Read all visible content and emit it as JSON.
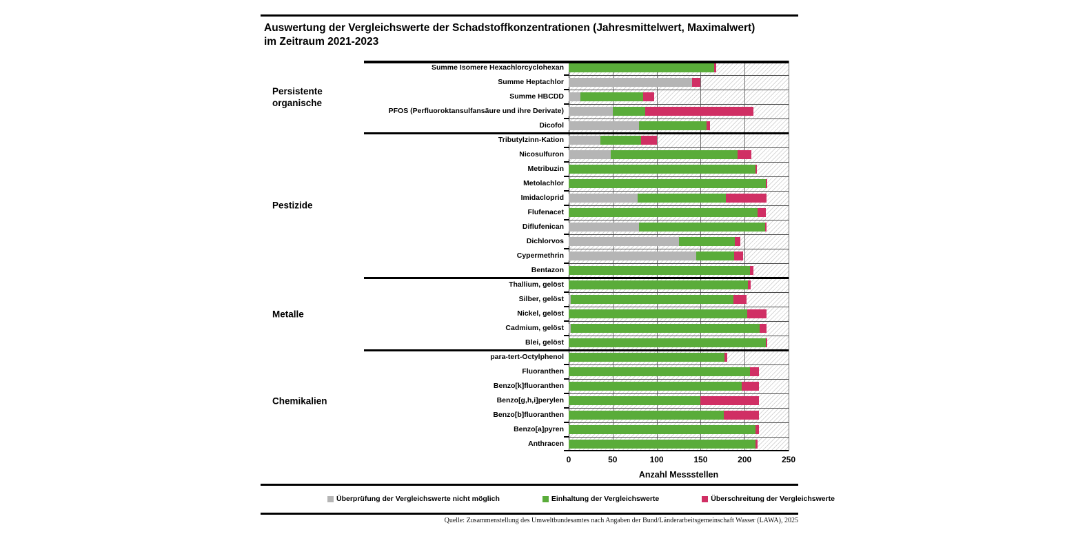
{
  "title": {
    "line1": "Auswertung der Vergleichswerte der Schadstoffkonzentrationen (Jahresmittelwert, Maximalwert)",
    "line2": "im Zeitraum 2021-2023"
  },
  "source": "Quelle: Zusammenstellung des Umweltbundesamtes nach Angaben der Bund/Länderarbeitsgemeinschaft Wasser (LAWA), 2025",
  "chart_data": {
    "type": "bar",
    "orientation": "horizontal",
    "stacked": true,
    "xlabel": "Anzahl Messstellen",
    "xlim": [
      0,
      250
    ],
    "xticks": [
      0,
      50,
      100,
      150,
      200,
      250
    ],
    "grid": true,
    "legend_position": "bottom",
    "legend": [
      {
        "label": "Überprüfung der Vergleichswerte nicht möglich",
        "color": "#b5b5b5"
      },
      {
        "label": "Einhaltung der Vergleichswerte",
        "color": "#5aac3a"
      },
      {
        "label": "Überschreitung der Vergleichswerte",
        "color": "#d02f64"
      }
    ],
    "series_order": [
      "Überprüfung der Vergleichswerte nicht möglich",
      "Einhaltung der Vergleichswerte",
      "Überschreitung der Vergleichswerte"
    ],
    "groups": [
      {
        "name": "Persistente organische",
        "rows": [
          {
            "label": "Summe Isomere Hexachlorcyclohexan",
            "values": [
              0,
              165,
              3
            ]
          },
          {
            "label": "Summe Heptachlor",
            "values": [
              140,
              0,
              10
            ]
          },
          {
            "label": "Summe HBCDD",
            "values": [
              13,
              72,
              12
            ]
          },
          {
            "label": "PFOS (Perfluoroktansulfansäure und ihre Derivate)",
            "values": [
              50,
              37,
              123
            ]
          },
          {
            "label": "Dicofol",
            "values": [
              80,
              77,
              4
            ]
          }
        ]
      },
      {
        "name": "Pestizide",
        "rows": [
          {
            "label": "Tributylzinn-Kation",
            "values": [
              36,
              46,
              18
            ]
          },
          {
            "label": "Nicosulfuron",
            "values": [
              48,
              144,
              16
            ]
          },
          {
            "label": "Metribuzin",
            "values": [
              0,
              212,
              2
            ]
          },
          {
            "label": "Metolachlor",
            "values": [
              0,
              224,
              2
            ]
          },
          {
            "label": "Imidacloprid",
            "values": [
              78,
              101,
              46
            ]
          },
          {
            "label": "Flufenacet",
            "values": [
              0,
              215,
              9
            ]
          },
          {
            "label": "Diflufenican",
            "values": [
              80,
              143,
              2
            ]
          },
          {
            "label": "Dichlorvos",
            "values": [
              125,
              64,
              6
            ]
          },
          {
            "label": "Cypermethrin",
            "values": [
              145,
              43,
              10
            ]
          },
          {
            "label": "Bentazon",
            "values": [
              0,
              206,
              4
            ]
          }
        ]
      },
      {
        "name": "Metalle",
        "rows": [
          {
            "label": "Thallium, gelöst",
            "values": [
              0,
              204,
              3
            ]
          },
          {
            "label": "Silber, gelöst",
            "values": [
              2,
              185,
              15
            ]
          },
          {
            "label": "Nickel, gelöst",
            "values": [
              0,
              203,
              22
            ]
          },
          {
            "label": "Cadmium, gelöst",
            "values": [
              2,
              215,
              8
            ]
          },
          {
            "label": "Blei, gelöst",
            "values": [
              0,
              224,
              2
            ]
          }
        ]
      },
      {
        "name": "Chemikalien",
        "rows": [
          {
            "label": "para-tert-Octylphenol",
            "values": [
              0,
              177,
              3
            ]
          },
          {
            "label": "Fluoranthen",
            "values": [
              0,
              206,
              10
            ]
          },
          {
            "label": "Benzo[k]fluoranthen",
            "values": [
              0,
              197,
              19
            ]
          },
          {
            "label": "Benzo[g,h,i]perylen",
            "values": [
              0,
              150,
              66
            ]
          },
          {
            "label": "Benzo[b]fluoranthen",
            "values": [
              0,
              176,
              40
            ]
          },
          {
            "label": "Benzo[a]pyren",
            "values": [
              0,
              212,
              4
            ]
          },
          {
            "label": "Anthracen",
            "values": [
              0,
              212,
              3
            ]
          }
        ]
      }
    ]
  }
}
